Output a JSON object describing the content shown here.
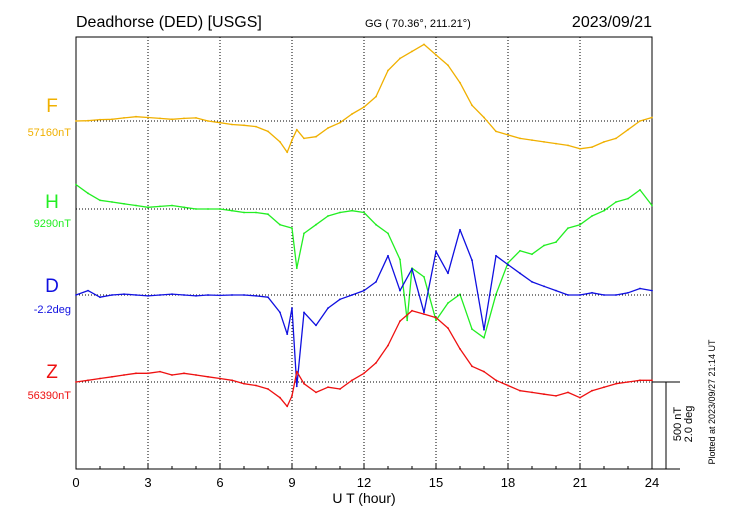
{
  "header": {
    "station": "Deadhorse (DED)  [USGS]",
    "coords": "GG ( 70.36°, 211.21°)",
    "date": "2023/09/21"
  },
  "footer": {
    "plotted_note": "Plotted at 2023/09/27 21:14 UT"
  },
  "colors": {
    "F": "#f0b000",
    "H": "#22ee22",
    "D": "#1010e0",
    "Z": "#ee1111",
    "grid": "#000000"
  },
  "chart_data": {
    "type": "line",
    "title": "Deadhorse (DED)  [USGS]",
    "xlabel": "U T (hour)",
    "xlim": [
      0,
      24
    ],
    "x_ticks": [
      "0",
      "3",
      "6",
      "9",
      "12",
      "15",
      "18",
      "21",
      "24"
    ],
    "grid": true,
    "scale_bar": {
      "labels": [
        "500 nT",
        "2.0 deg"
      ],
      "value_nT": 500,
      "value_deg": 2.0
    },
    "series": [
      {
        "name": "F",
        "baseline_label": "57160nT",
        "baseline": 57160,
        "unit": "nT",
        "x": [
          0,
          0.5,
          1,
          1.5,
          2,
          2.5,
          3,
          3.5,
          4,
          4.5,
          5,
          5.5,
          6,
          6.5,
          7,
          7.5,
          8,
          8.5,
          8.8,
          9,
          9.2,
          9.5,
          10,
          10.5,
          11,
          11.5,
          12,
          12.5,
          13,
          13.5,
          14,
          14.5,
          15,
          15.5,
          16,
          16.5,
          17,
          17.5,
          18,
          18.5,
          19,
          19.5,
          20,
          20.5,
          21,
          21.5,
          22,
          22.5,
          23,
          23.5,
          24
        ],
        "y": [
          57160,
          57162,
          57168,
          57170,
          57178,
          57185,
          57180,
          57175,
          57170,
          57175,
          57178,
          57160,
          57150,
          57140,
          57135,
          57128,
          57100,
          57040,
          56980,
          57050,
          57110,
          57060,
          57070,
          57120,
          57150,
          57200,
          57240,
          57300,
          57450,
          57520,
          57560,
          57600,
          57540,
          57480,
          57380,
          57250,
          57180,
          57100,
          57080,
          57060,
          57050,
          57040,
          57030,
          57020,
          57000,
          57010,
          57040,
          57060,
          57110,
          57160,
          57180
        ]
      },
      {
        "name": "H",
        "baseline_label": "9290nT",
        "baseline": 9290,
        "unit": "nT",
        "x": [
          0,
          0.5,
          1,
          1.5,
          2,
          2.5,
          3,
          3.5,
          4,
          4.5,
          5,
          5.5,
          6,
          6.5,
          7,
          7.5,
          8,
          8.5,
          9,
          9.2,
          9.5,
          10,
          10.5,
          11,
          11.5,
          12,
          12.5,
          13,
          13.5,
          13.8,
          14,
          14.5,
          15,
          15.5,
          16,
          16.5,
          17,
          17.5,
          18,
          18.5,
          19,
          19.5,
          20,
          20.5,
          21,
          21.5,
          22,
          22.5,
          23,
          23.5,
          24
        ],
        "y": [
          9430,
          9380,
          9340,
          9330,
          9320,
          9310,
          9300,
          9305,
          9310,
          9300,
          9290,
          9290,
          9290,
          9280,
          9270,
          9270,
          9260,
          9200,
          9180,
          8950,
          9150,
          9200,
          9250,
          9270,
          9280,
          9270,
          9200,
          9150,
          9000,
          8650,
          8950,
          8900,
          8650,
          8750,
          8800,
          8600,
          8550,
          8800,
          8980,
          9050,
          9030,
          9080,
          9100,
          9180,
          9200,
          9250,
          9280,
          9330,
          9350,
          9400,
          9310
        ]
      },
      {
        "name": "D",
        "baseline_label": "-2.2deg",
        "baseline": -2.2,
        "unit": "deg",
        "x": [
          0,
          0.5,
          1,
          1.5,
          2,
          2.5,
          3,
          3.5,
          4,
          4.5,
          5,
          5.5,
          6,
          6.5,
          7,
          7.5,
          8,
          8.5,
          8.8,
          9,
          9.2,
          9.5,
          10,
          10.5,
          11,
          11.5,
          12,
          12.5,
          13,
          13.5,
          14,
          14.5,
          15,
          15.5,
          16,
          16.5,
          17,
          17.5,
          18,
          18.5,
          19,
          19.5,
          20,
          20.5,
          21,
          21.5,
          22,
          22.5,
          23,
          23.5,
          24
        ],
        "y": [
          -2.2,
          -2.1,
          -2.25,
          -2.2,
          -2.18,
          -2.2,
          -2.22,
          -2.2,
          -2.18,
          -2.2,
          -2.22,
          -2.2,
          -2.21,
          -2.2,
          -2.2,
          -2.22,
          -2.25,
          -2.6,
          -3.1,
          -2.5,
          -4.3,
          -2.6,
          -2.9,
          -2.5,
          -2.3,
          -2.2,
          -2.1,
          -1.9,
          -1.3,
          -2.1,
          -1.6,
          -2.6,
          -1.2,
          -1.7,
          -0.7,
          -1.4,
          -3.0,
          -1.3,
          -1.5,
          -1.7,
          -1.9,
          -2.0,
          -2.1,
          -2.2,
          -2.2,
          -2.15,
          -2.2,
          -2.2,
          -2.15,
          -2.05,
          -2.1
        ]
      },
      {
        "name": "Z",
        "baseline_label": "56390nT",
        "baseline": 56390,
        "unit": "nT",
        "x": [
          0,
          0.5,
          1,
          1.5,
          2,
          2.5,
          3,
          3.5,
          4,
          4.5,
          5,
          5.5,
          6,
          6.5,
          7,
          7.5,
          8,
          8.5,
          8.8,
          9,
          9.2,
          9.5,
          10,
          10.5,
          11,
          11.5,
          12,
          12.5,
          13,
          13.5,
          14,
          14.5,
          15,
          15.5,
          16,
          16.5,
          17,
          17.5,
          18,
          18.5,
          19,
          19.5,
          20,
          20.5,
          21,
          21.5,
          22,
          22.5,
          23,
          23.5,
          24
        ],
        "y": [
          56390,
          56400,
          56410,
          56420,
          56430,
          56440,
          56440,
          56450,
          56430,
          56440,
          56430,
          56420,
          56410,
          56400,
          56380,
          56370,
          56350,
          56300,
          56250,
          56310,
          56450,
          56380,
          56330,
          56360,
          56350,
          56400,
          56440,
          56500,
          56600,
          56740,
          56800,
          56780,
          56760,
          56700,
          56580,
          56480,
          56450,
          56400,
          56370,
          56340,
          56330,
          56320,
          56310,
          56330,
          56300,
          56340,
          56360,
          56380,
          56390,
          56400,
          56400
        ]
      }
    ]
  }
}
